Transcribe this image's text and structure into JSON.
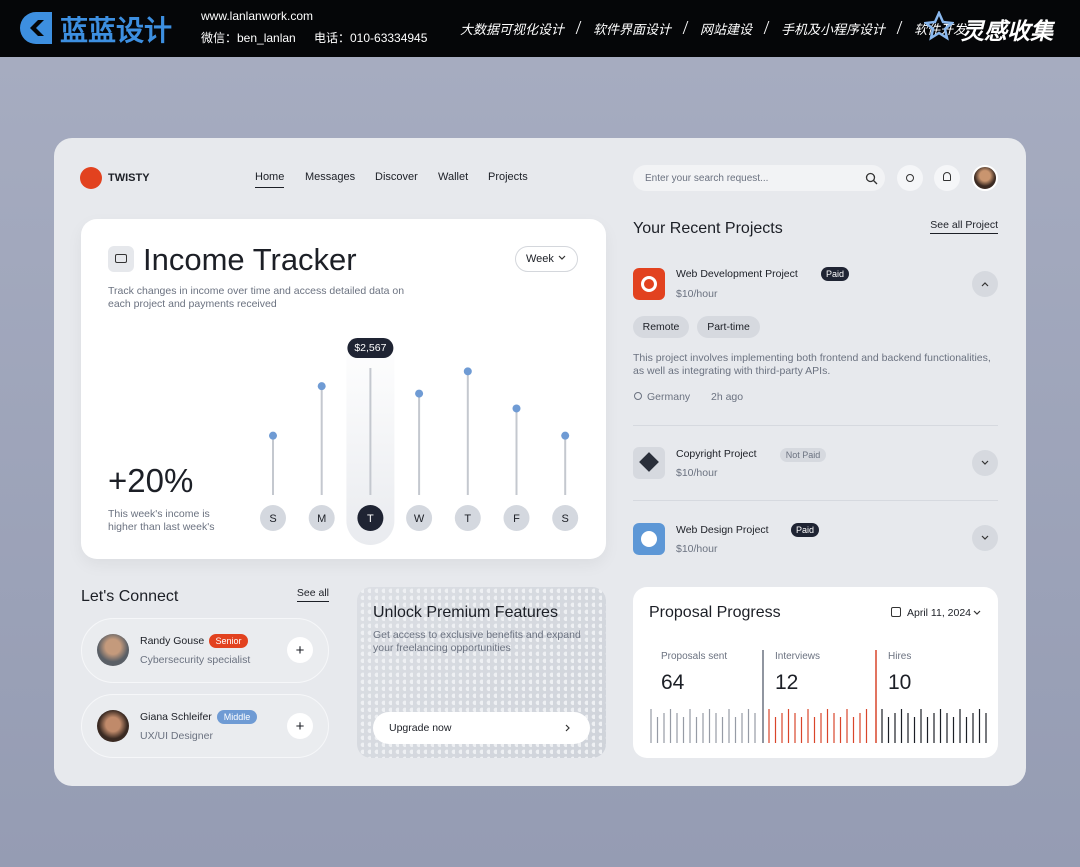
{
  "banner": {
    "brand": "蓝蓝设计",
    "url": "www.lanlanwork.com",
    "wechat": "微信：ben_lanlan",
    "phone": "电话：010-63334945",
    "services": [
      "大数据可视化设计",
      "软件界面设计",
      "网站建设",
      "手机及小程序设计",
      "软件开发"
    ],
    "collect": "灵感收集"
  },
  "nav": {
    "logo": "TWISTY",
    "links": [
      "Home",
      "Messages",
      "Discover",
      "Wallet",
      "Projects"
    ],
    "search_placeholder": "Enter your search request..."
  },
  "income": {
    "title": "Income Tracker",
    "period": "Week",
    "description": "Track changes in income over time and access detailed data on each project and payments received",
    "change": "+20%",
    "change_note": "This week's income is higher than last week's"
  },
  "chart_data": {
    "type": "lollipop",
    "categories": [
      "S",
      "M",
      "T",
      "W",
      "T",
      "F",
      "S"
    ],
    "values": [
      1200,
      2200,
      2567,
      2050,
      2500,
      1750,
      1200
    ],
    "value_labels": [
      null,
      null,
      "$2,567",
      null,
      null,
      null,
      null
    ],
    "color": "#6f9bd4",
    "ylim": [
      0,
      2800
    ]
  },
  "projects": {
    "title": "Your Recent Projects",
    "see_all": "See all Project",
    "items": [
      {
        "name": "Web Development Project",
        "status": "Paid",
        "rate": "$10/hour",
        "tags": [
          "Remote",
          "Part-time"
        ],
        "description": "This project involves implementing both frontend and backend functionalities, as well as integrating with third-party APIs.",
        "location": "Germany",
        "time": "2h ago"
      },
      {
        "name": "Copyright Project",
        "status": "Not Paid",
        "rate": "$10/hour"
      },
      {
        "name": "Web Design Project",
        "status": "Paid",
        "rate": "$10/hour"
      }
    ]
  },
  "connect": {
    "title": "Let's Connect",
    "see_all": "See all",
    "people": [
      {
        "name": "Randy Gouse",
        "level": "Senior",
        "role": "Cybersecurity specialist"
      },
      {
        "name": "Giana Schleifer",
        "level": "Middle",
        "role": "UX/UI Designer"
      }
    ]
  },
  "premium": {
    "title": "Unlock Premium Features",
    "description": "Get access to exclusive benefits and expand your freelancing opportunities",
    "button": "Upgrade now"
  },
  "proposal": {
    "title": "Proposal Progress",
    "date": "April 11, 2024",
    "stats": [
      {
        "label": "Proposals sent",
        "value": "64"
      },
      {
        "label": "Interviews",
        "value": "12"
      },
      {
        "label": "Hires",
        "value": "10"
      }
    ]
  }
}
